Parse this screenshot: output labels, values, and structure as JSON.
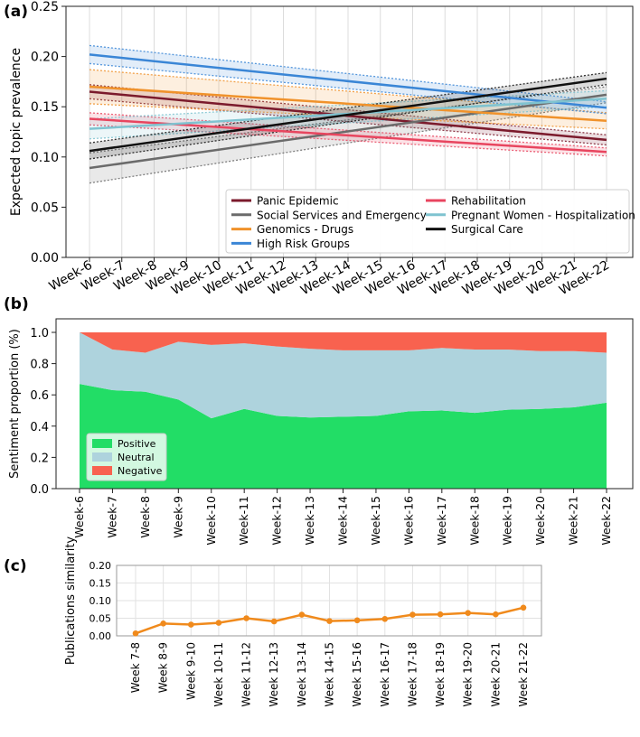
{
  "chart_data": [
    {
      "panel_label": "(a)",
      "type": "line",
      "ylabel": "Expected topic prevalence",
      "ylim": [
        0.0,
        0.25
      ],
      "yticks": [
        "0.00",
        "0.05",
        "0.10",
        "0.15",
        "0.20",
        "0.25"
      ],
      "categories": [
        "Week-6",
        "Week-7",
        "Week-8",
        "Week-9",
        "Week-10",
        "Week-11",
        "Week-12",
        "Week-13",
        "Week-14",
        "Week-15",
        "Week-16",
        "Week-17",
        "Week-18",
        "Week-19",
        "Week-20",
        "Week-21",
        "Week-22"
      ],
      "grid": "vertical",
      "legend_position": "bottom-right",
      "series": [
        {
          "name": "Panic Epidemic",
          "color": "#7b1a2c",
          "start": 0.165,
          "end": 0.117,
          "ci_start": 0.007,
          "ci_end": 0.005
        },
        {
          "name": "Social Services and Emergency",
          "color": "#6b6b6b",
          "start": 0.089,
          "end": 0.162,
          "ci_start": 0.015,
          "ci_end": 0.008
        },
        {
          "name": "Genomics - Drugs",
          "color": "#f0922b",
          "start": 0.17,
          "end": 0.136,
          "ci_start": 0.017,
          "ci_end": 0.008
        },
        {
          "name": "High Risk Groups",
          "color": "#3a86d6",
          "start": 0.202,
          "end": 0.149,
          "ci_start": 0.009,
          "ci_end": 0.006
        },
        {
          "name": "Rehabilitation",
          "color": "#e8455f",
          "start": 0.138,
          "end": 0.105,
          "ci_start": 0.006,
          "ci_end": 0.004
        },
        {
          "name": "Pregnant Women - Hospitalization",
          "color": "#7fc3d0",
          "start": 0.128,
          "end": 0.158,
          "ci_start": 0.01,
          "ci_end": 0.008
        },
        {
          "name": "Surgical Care",
          "color": "#111111",
          "start": 0.106,
          "end": 0.178,
          "ci_start": 0.008,
          "ci_end": 0.006
        }
      ]
    },
    {
      "panel_label": "(b)",
      "type": "area",
      "stacked": true,
      "ylabel": "Sentiment proportion (%)",
      "ylim": [
        0.0,
        1.0
      ],
      "yticks": [
        "0.0",
        "0.2",
        "0.4",
        "0.6",
        "0.8",
        "1.0"
      ],
      "categories": [
        "Week-6",
        "Week-7",
        "Week-8",
        "Week-9",
        "Week-10",
        "Week-11",
        "Week-12",
        "Week-13",
        "Week-14",
        "Week-15",
        "Week-16",
        "Week-17",
        "Week-18",
        "Week-19",
        "Week-20",
        "Week-21",
        "Week-22"
      ],
      "legend_position": "bottom-left",
      "series": [
        {
          "name": "Positive",
          "color": "#22dd66",
          "values": [
            0.67,
            0.63,
            0.62,
            0.57,
            0.45,
            0.51,
            0.465,
            0.455,
            0.46,
            0.465,
            0.495,
            0.5,
            0.485,
            0.505,
            0.51,
            0.52,
            0.55
          ]
        },
        {
          "name": "Neutral",
          "color": "#aed3dd",
          "values": [
            0.33,
            0.26,
            0.25,
            0.37,
            0.47,
            0.42,
            0.445,
            0.44,
            0.425,
            0.42,
            0.39,
            0.4,
            0.405,
            0.385,
            0.37,
            0.36,
            0.32
          ]
        },
        {
          "name": "Negative",
          "color": "#f8624f",
          "values": [
            0.0,
            0.11,
            0.13,
            0.06,
            0.08,
            0.07,
            0.09,
            0.105,
            0.115,
            0.115,
            0.115,
            0.1,
            0.11,
            0.11,
            0.12,
            0.12,
            0.13
          ]
        }
      ]
    },
    {
      "panel_label": "(c)",
      "type": "line",
      "ylabel": "Publications similarity",
      "ylim": [
        0.0,
        0.2
      ],
      "yticks": [
        "0.00",
        "0.05",
        "0.10",
        "0.15",
        "0.20"
      ],
      "categories": [
        "Week 7-8",
        "Week 8-9",
        "Week 9-10",
        "Week 10-11",
        "Week 11-12",
        "Week 12-13",
        "Week 13-14",
        "Week 14-15",
        "Week 15-16",
        "Week 16-17",
        "Week 17-18",
        "Week 18-19",
        "Week 19-20",
        "Week 20-21",
        "Week 21-22"
      ],
      "grid": "both",
      "series": [
        {
          "name": "Publications similarity",
          "color": "#f08a1c",
          "values": [
            0.007,
            0.035,
            0.032,
            0.037,
            0.05,
            0.041,
            0.06,
            0.042,
            0.044,
            0.048,
            0.06,
            0.061,
            0.065,
            0.061,
            0.08
          ]
        }
      ]
    }
  ]
}
